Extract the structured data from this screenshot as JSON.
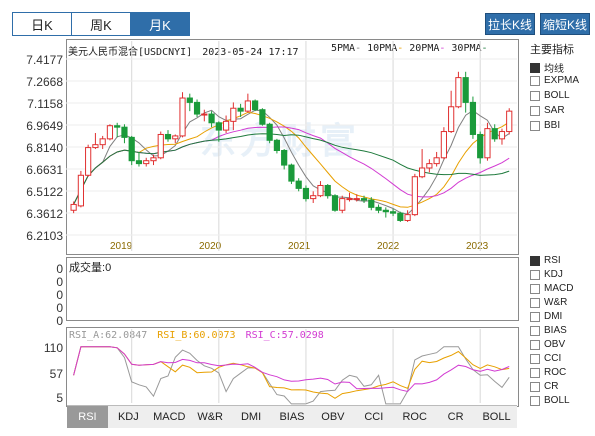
{
  "period_tabs": [
    {
      "label": "日K",
      "active": false
    },
    {
      "label": "周K",
      "active": false
    },
    {
      "label": "月K",
      "active": true
    }
  ],
  "buttons": {
    "stretch": "拉长K线",
    "shrink": "缩短K线"
  },
  "main_chart": {
    "title": "美元人民币混合[USDCNYI]",
    "datetime": "2023-05-24 17:17",
    "ma_legend": [
      {
        "label": "5PMA",
        "color": "#808080"
      },
      {
        "label": "10PMA",
        "color": "#e8a000"
      },
      {
        "label": "20PMA",
        "color": "#d23bd2"
      },
      {
        "label": "30PMA",
        "color": "#1e7a3c"
      }
    ],
    "y_ticks": [
      "7.4177",
      "7.2668",
      "7.1158",
      "6.9649",
      "6.8140",
      "6.6631",
      "6.5122",
      "6.3612",
      "6.2103"
    ],
    "x_ticks": [
      "2019",
      "2020",
      "2021",
      "2022",
      "2023"
    ],
    "watermark": "东方财富"
  },
  "volume_panel": {
    "label": "成交量:",
    "value": "0",
    "y_ticks": [
      "0",
      "0",
      "0",
      "0",
      "0"
    ]
  },
  "rsi_panel": {
    "legend": [
      {
        "label": "RSI_A:62.0847",
        "color": "#999999"
      },
      {
        "label": "RSI_B:60.0073",
        "color": "#e8a000"
      },
      {
        "label": "RSI_C:57.0298",
        "color": "#d23bd2"
      }
    ],
    "y_ticks": [
      "110",
      "57",
      "5"
    ]
  },
  "main_indicators": {
    "title": "主要指标",
    "items": [
      {
        "label": "均线",
        "checked": true
      },
      {
        "label": "EXPMA",
        "checked": false
      },
      {
        "label": "BOLL",
        "checked": false
      },
      {
        "label": "SAR",
        "checked": false
      },
      {
        "label": "BBI",
        "checked": false
      }
    ]
  },
  "sub_indicators": {
    "items": [
      {
        "label": "RSI",
        "checked": true
      },
      {
        "label": "KDJ",
        "checked": false
      },
      {
        "label": "MACD",
        "checked": false
      },
      {
        "label": "W&R",
        "checked": false
      },
      {
        "label": "DMI",
        "checked": false
      },
      {
        "label": "BIAS",
        "checked": false
      },
      {
        "label": "OBV",
        "checked": false
      },
      {
        "label": "CCI",
        "checked": false
      },
      {
        "label": "ROC",
        "checked": false
      },
      {
        "label": "CR",
        "checked": false
      },
      {
        "label": "BOLL",
        "checked": false
      }
    ]
  },
  "bottom_tabs": [
    {
      "label": "RSI",
      "active": true
    },
    {
      "label": "KDJ",
      "active": false
    },
    {
      "label": "MACD",
      "active": false
    },
    {
      "label": "W&R",
      "active": false
    },
    {
      "label": "DMI",
      "active": false
    },
    {
      "label": "BIAS",
      "active": false
    },
    {
      "label": "OBV",
      "active": false
    },
    {
      "label": "CCI",
      "active": false
    },
    {
      "label": "ROC",
      "active": false
    },
    {
      "label": "CR",
      "active": false
    },
    {
      "label": "BOLL",
      "active": false
    }
  ],
  "chart_data": {
    "type": "candlestick",
    "series_label": "美元人民币混合[USDCNYI]",
    "ylim": [
      6.2103,
      7.4177
    ],
    "colors": {
      "up": "#e03030",
      "down": "#1a9a3a"
    },
    "candles": [
      {
        "date": "2018-05",
        "open": 6.38,
        "close": 6.42,
        "high": 6.44,
        "low": 6.36
      },
      {
        "date": "2018-06",
        "open": 6.41,
        "close": 6.62,
        "high": 6.65,
        "low": 6.4
      },
      {
        "date": "2018-07",
        "open": 6.62,
        "close": 6.81,
        "high": 6.83,
        "low": 6.61
      },
      {
        "date": "2018-08",
        "open": 6.81,
        "close": 6.83,
        "high": 6.91,
        "low": 6.8
      },
      {
        "date": "2018-09",
        "open": 6.83,
        "close": 6.87,
        "high": 6.89,
        "low": 6.8
      },
      {
        "date": "2018-10",
        "open": 6.87,
        "close": 6.96,
        "high": 6.97,
        "low": 6.86
      },
      {
        "date": "2018-11",
        "open": 6.96,
        "close": 6.95,
        "high": 6.98,
        "low": 6.88
      },
      {
        "date": "2018-12",
        "open": 6.95,
        "close": 6.88,
        "high": 6.97,
        "low": 6.84
      },
      {
        "date": "2019-01",
        "open": 6.88,
        "close": 6.72,
        "high": 6.89,
        "low": 6.69
      },
      {
        "date": "2019-02",
        "open": 6.72,
        "close": 6.7,
        "high": 6.78,
        "low": 6.68
      },
      {
        "date": "2019-03",
        "open": 6.7,
        "close": 6.72,
        "high": 6.74,
        "low": 6.68
      },
      {
        "date": "2019-04",
        "open": 6.72,
        "close": 6.74,
        "high": 6.76,
        "low": 6.69
      },
      {
        "date": "2019-05",
        "open": 6.74,
        "close": 6.9,
        "high": 6.92,
        "low": 6.73
      },
      {
        "date": "2019-06",
        "open": 6.9,
        "close": 6.87,
        "high": 6.93,
        "low": 6.85
      },
      {
        "date": "2019-07",
        "open": 6.87,
        "close": 6.89,
        "high": 6.9,
        "low": 6.84
      },
      {
        "date": "2019-08",
        "open": 6.89,
        "close": 7.15,
        "high": 7.19,
        "low": 6.88
      },
      {
        "date": "2019-09",
        "open": 7.15,
        "close": 7.12,
        "high": 7.18,
        "low": 7.06
      },
      {
        "date": "2019-10",
        "open": 7.12,
        "close": 7.04,
        "high": 7.14,
        "low": 7.02
      },
      {
        "date": "2019-11",
        "open": 7.04,
        "close": 7.04,
        "high": 7.07,
        "low": 6.99
      },
      {
        "date": "2019-12",
        "open": 7.04,
        "close": 6.98,
        "high": 7.06,
        "low": 6.95
      },
      {
        "date": "2020-01",
        "open": 6.98,
        "close": 6.93,
        "high": 6.99,
        "low": 6.85
      },
      {
        "date": "2020-02",
        "open": 6.93,
        "close": 6.99,
        "high": 7.03,
        "low": 6.91
      },
      {
        "date": "2020-03",
        "open": 6.99,
        "close": 7.08,
        "high": 7.12,
        "low": 6.93
      },
      {
        "date": "2020-04",
        "open": 7.08,
        "close": 7.06,
        "high": 7.11,
        "low": 7.02
      },
      {
        "date": "2020-05",
        "open": 7.06,
        "close": 7.13,
        "high": 7.18,
        "low": 7.05
      },
      {
        "date": "2020-06",
        "open": 7.13,
        "close": 7.07,
        "high": 7.14,
        "low": 7.06
      },
      {
        "date": "2020-07",
        "open": 7.07,
        "close": 6.97,
        "high": 7.08,
        "low": 6.96
      },
      {
        "date": "2020-08",
        "open": 6.97,
        "close": 6.86,
        "high": 6.98,
        "low": 6.84
      },
      {
        "date": "2020-09",
        "open": 6.86,
        "close": 6.79,
        "high": 6.87,
        "low": 6.77
      },
      {
        "date": "2020-10",
        "open": 6.79,
        "close": 6.69,
        "high": 6.8,
        "low": 6.66
      },
      {
        "date": "2020-11",
        "open": 6.69,
        "close": 6.58,
        "high": 6.7,
        "low": 6.56
      },
      {
        "date": "2020-12",
        "open": 6.58,
        "close": 6.53,
        "high": 6.6,
        "low": 6.51
      },
      {
        "date": "2021-01",
        "open": 6.53,
        "close": 6.46,
        "high": 6.55,
        "low": 6.44
      },
      {
        "date": "2021-02",
        "open": 6.46,
        "close": 6.48,
        "high": 6.51,
        "low": 6.43
      },
      {
        "date": "2021-03",
        "open": 6.48,
        "close": 6.55,
        "high": 6.58,
        "low": 6.47
      },
      {
        "date": "2021-04",
        "open": 6.55,
        "close": 6.48,
        "high": 6.56,
        "low": 6.46
      },
      {
        "date": "2021-05",
        "open": 6.48,
        "close": 6.38,
        "high": 6.49,
        "low": 6.37
      },
      {
        "date": "2021-06",
        "open": 6.38,
        "close": 6.46,
        "high": 6.48,
        "low": 6.36
      },
      {
        "date": "2021-07",
        "open": 6.46,
        "close": 6.46,
        "high": 6.5,
        "low": 6.44
      },
      {
        "date": "2021-08",
        "open": 6.46,
        "close": 6.46,
        "high": 6.49,
        "low": 6.44
      },
      {
        "date": "2021-09",
        "open": 6.46,
        "close": 6.45,
        "high": 6.48,
        "low": 6.43
      },
      {
        "date": "2021-10",
        "open": 6.45,
        "close": 6.4,
        "high": 6.47,
        "low": 6.38
      },
      {
        "date": "2021-11",
        "open": 6.4,
        "close": 6.38,
        "high": 6.42,
        "low": 6.36
      },
      {
        "date": "2021-12",
        "open": 6.38,
        "close": 6.37,
        "high": 6.4,
        "low": 6.33
      },
      {
        "date": "2022-01",
        "open": 6.37,
        "close": 6.36,
        "high": 6.39,
        "low": 6.34
      },
      {
        "date": "2022-02",
        "open": 6.36,
        "close": 6.31,
        "high": 6.37,
        "low": 6.3
      },
      {
        "date": "2022-03",
        "open": 6.31,
        "close": 6.35,
        "high": 6.38,
        "low": 6.3
      },
      {
        "date": "2022-04",
        "open": 6.35,
        "close": 6.61,
        "high": 6.63,
        "low": 6.34
      },
      {
        "date": "2022-05",
        "open": 6.61,
        "close": 6.67,
        "high": 6.8,
        "low": 6.6
      },
      {
        "date": "2022-06",
        "open": 6.67,
        "close": 6.7,
        "high": 6.73,
        "low": 6.64
      },
      {
        "date": "2022-07",
        "open": 6.7,
        "close": 6.74,
        "high": 6.78,
        "low": 6.68
      },
      {
        "date": "2022-08",
        "open": 6.74,
        "close": 6.92,
        "high": 6.95,
        "low": 6.73
      },
      {
        "date": "2022-09",
        "open": 6.92,
        "close": 7.09,
        "high": 7.2,
        "low": 6.91
      },
      {
        "date": "2022-10",
        "open": 7.09,
        "close": 7.29,
        "high": 7.33,
        "low": 7.08
      },
      {
        "date": "2022-11",
        "open": 7.29,
        "close": 7.12,
        "high": 7.33,
        "low": 7.05
      },
      {
        "date": "2022-12",
        "open": 7.12,
        "close": 6.9,
        "high": 7.16,
        "low": 6.87
      },
      {
        "date": "2023-01",
        "open": 6.9,
        "close": 6.74,
        "high": 6.92,
        "low": 6.7
      },
      {
        "date": "2023-02",
        "open": 6.74,
        "close": 6.94,
        "high": 6.98,
        "low": 6.72
      },
      {
        "date": "2023-03",
        "open": 6.94,
        "close": 6.87,
        "high": 6.97,
        "low": 6.85
      },
      {
        "date": "2023-04",
        "open": 6.87,
        "close": 6.92,
        "high": 6.94,
        "low": 6.83
      },
      {
        "date": "2023-05",
        "open": 6.92,
        "close": 7.06,
        "high": 7.08,
        "low": 6.9
      }
    ],
    "rsi_ylim": [
      5,
      110
    ]
  }
}
